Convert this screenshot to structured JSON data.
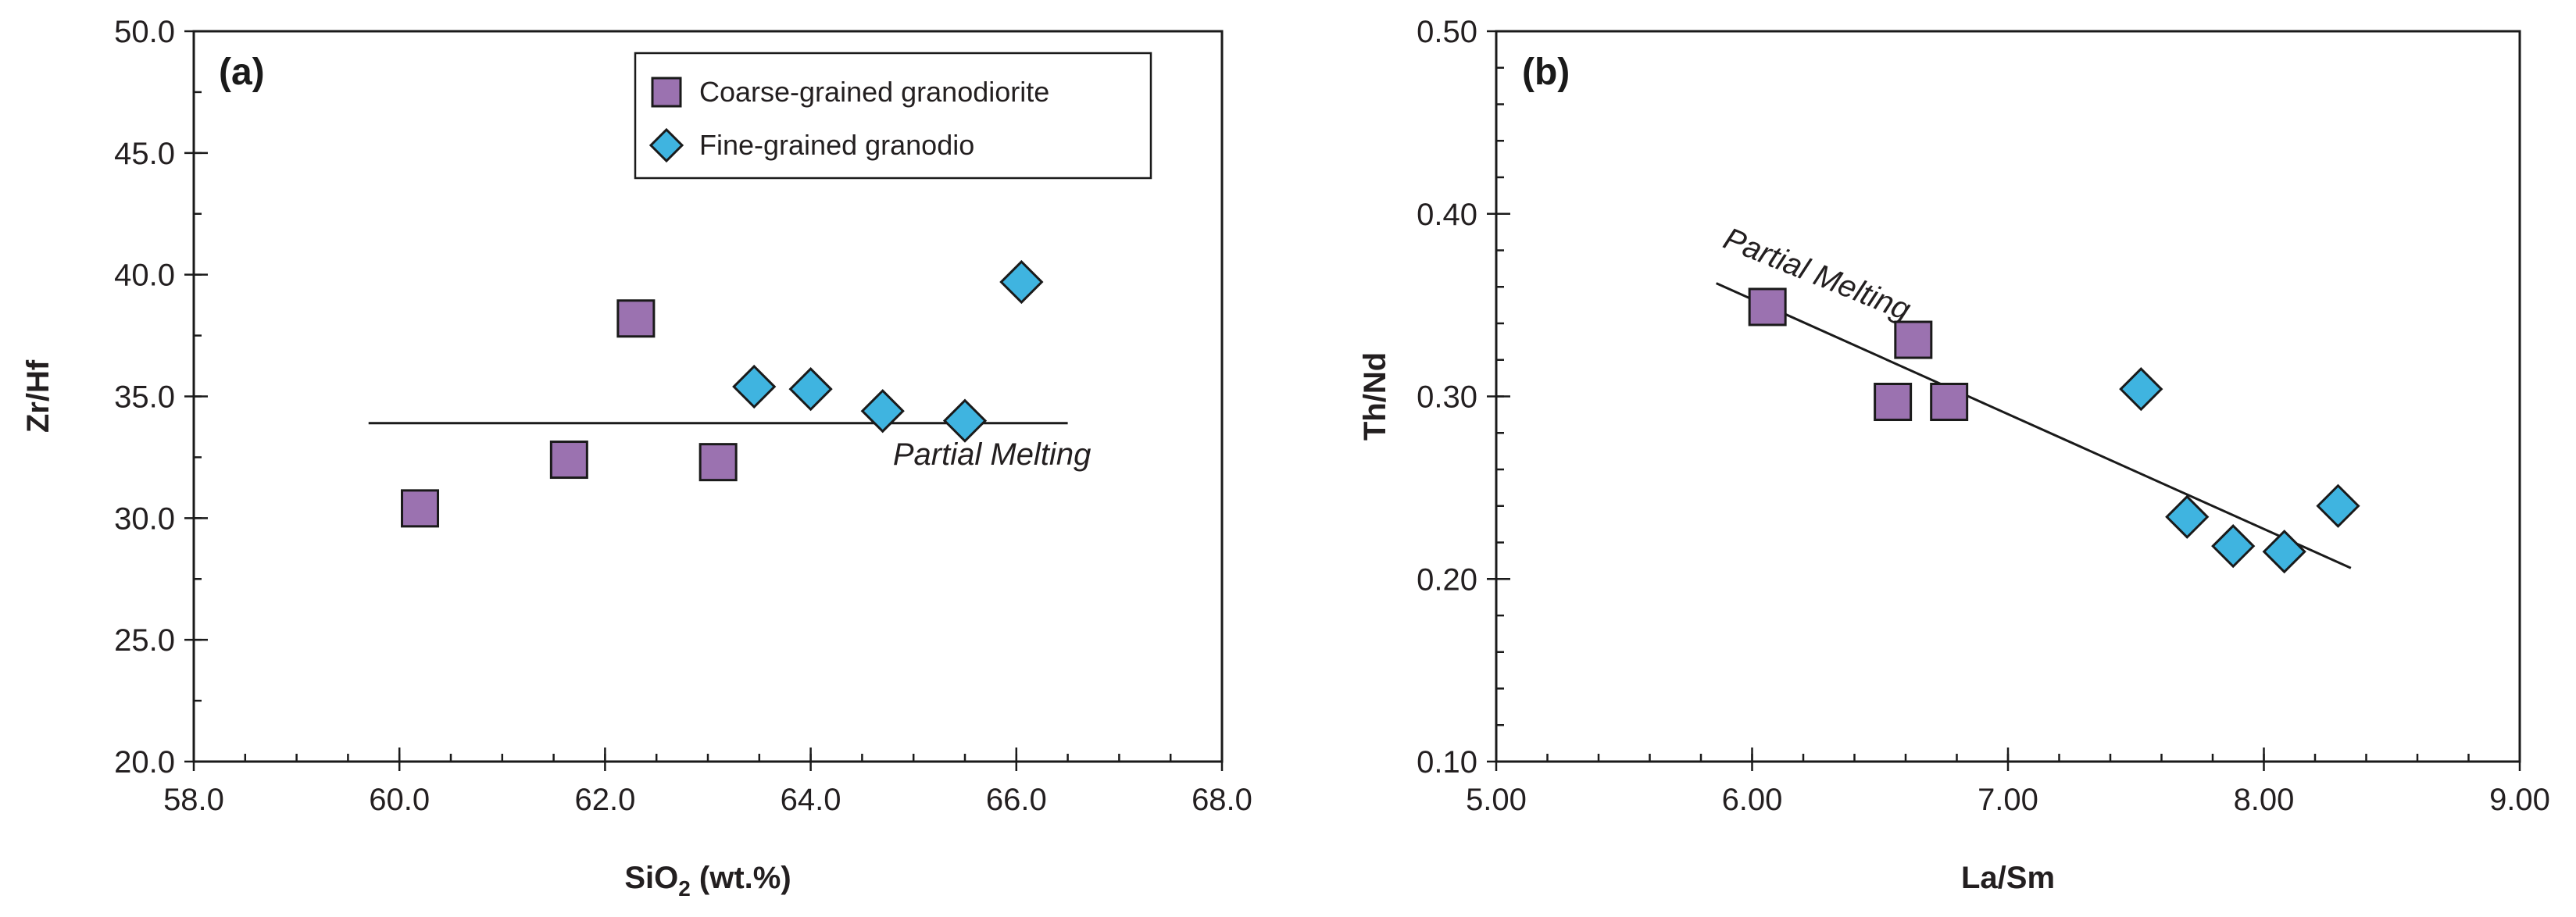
{
  "chart_data": [
    {
      "type": "scatter",
      "panel_label": "(a)",
      "xlabel": "SiO",
      "xlabel_sub": "2",
      "xlabel_suffix": " (wt.%)",
      "ylabel": "Zr/Hf",
      "xlim": [
        58.0,
        68.0
      ],
      "ylim": [
        20.0,
        50.0
      ],
      "x_ticks": [
        58.0,
        60.0,
        62.0,
        64.0,
        66.0,
        68.0
      ],
      "x_tick_labels": [
        "58.0",
        "60.0",
        "62.0",
        "64.0",
        "66.0",
        "68.0"
      ],
      "x_minor_step": 0.5,
      "y_ticks": [
        20.0,
        25.0,
        30.0,
        35.0,
        40.0,
        45.0,
        50.0
      ],
      "y_tick_labels": [
        "20.0",
        "25.0",
        "30.0",
        "35.0",
        "40.0",
        "45.0",
        "50.0"
      ],
      "y_minor_step": 2.5,
      "series": [
        {
          "name": "Coarse-grained granodiorite",
          "marker": "square",
          "color": "#9b72b0",
          "points": [
            [
              60.2,
              30.4
            ],
            [
              61.65,
              32.4
            ],
            [
              62.3,
              38.2
            ],
            [
              63.1,
              32.3
            ]
          ]
        },
        {
          "name": "Fine-grained granodio",
          "marker": "diamond",
          "color": "#3fb4e0",
          "points": [
            [
              63.45,
              35.4
            ],
            [
              64.0,
              35.3
            ],
            [
              64.7,
              34.4
            ],
            [
              65.5,
              34.0
            ],
            [
              66.05,
              39.7
            ]
          ]
        }
      ],
      "legend": {
        "location": "top-right",
        "entries": [
          "Coarse-grained granodiorite",
          "Fine-grained granodio"
        ]
      },
      "trend_line": {
        "points": [
          [
            59.7,
            33.9
          ],
          [
            66.5,
            33.9
          ]
        ]
      },
      "annotation": {
        "text": "Partial Melting",
        "x": 64.8,
        "y": 32.2,
        "angle": 0
      }
    },
    {
      "type": "scatter",
      "panel_label": "(b)",
      "xlabel": "La/Sm",
      "ylabel": "Th/Nd",
      "xlim": [
        5.0,
        9.0
      ],
      "ylim": [
        0.1,
        0.5
      ],
      "x_ticks": [
        5.0,
        6.0,
        7.0,
        8.0,
        9.0
      ],
      "x_tick_labels": [
        "5.00",
        "6.00",
        "7.00",
        "8.00",
        "9.00"
      ],
      "x_minor_step": 0.2,
      "y_ticks": [
        0.1,
        0.2,
        0.3,
        0.4,
        0.5
      ],
      "y_tick_labels": [
        "0.10",
        "0.20",
        "0.30",
        "0.40",
        "0.50"
      ],
      "y_minor_step": 0.02,
      "series": [
        {
          "name": "Coarse-grained granodiorite",
          "marker": "square",
          "color": "#9b72b0",
          "points": [
            [
              6.06,
              0.349
            ],
            [
              6.63,
              0.331
            ],
            [
              6.55,
              0.297
            ],
            [
              6.77,
              0.297
            ]
          ]
        },
        {
          "name": "Fine-grained granodio",
          "marker": "diamond",
          "color": "#3fb4e0",
          "points": [
            [
              7.52,
              0.304
            ],
            [
              7.7,
              0.234
            ],
            [
              7.88,
              0.218
            ],
            [
              8.08,
              0.215
            ],
            [
              8.29,
              0.24
            ]
          ]
        }
      ],
      "trend_line": {
        "points": [
          [
            5.86,
            0.362
          ],
          [
            8.34,
            0.206
          ]
        ]
      },
      "annotation": {
        "text": "Partial Melting",
        "x": 5.88,
        "y": 0.382,
        "angle": 22
      }
    }
  ]
}
